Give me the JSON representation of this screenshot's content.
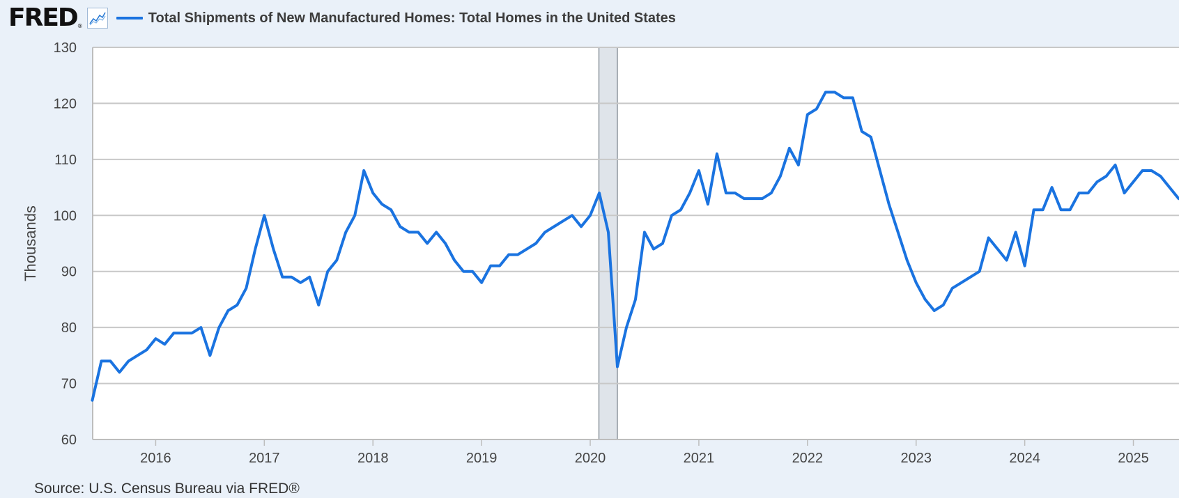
{
  "header": {
    "logo_text": "FRED",
    "logo_reg": "®",
    "legend_label": "Total Shipments of New Manufactured Homes: Total Homes in the United States",
    "logo_icon": "line-chart-icon"
  },
  "source": "Source: U.S. Census Bureau via FRED®",
  "colors": {
    "series": "#1a73e0",
    "recession": "#dfe4ea",
    "grid": "#c8c8c8",
    "background": "#eaf1f9"
  },
  "chart_data": {
    "type": "line",
    "title": "Total Shipments of New Manufactured Homes: Total Homes in the United States",
    "xlabel": "",
    "ylabel": "Thousands",
    "ylim": [
      60,
      130
    ],
    "yticks": [
      60,
      70,
      80,
      90,
      100,
      110,
      120,
      130
    ],
    "xlim": [
      2015.42,
      2025.42
    ],
    "xticks": [
      2016,
      2017,
      2018,
      2019,
      2020,
      2021,
      2022,
      2023,
      2024,
      2025
    ],
    "grid": true,
    "recession": [
      2020.08,
      2020.25
    ],
    "series": [
      {
        "name": "Total Shipments of New Manufactured Homes: Total Homes in the United States",
        "start": [
          2015,
          6
        ],
        "frequency": "monthly",
        "values": [
          67,
          74,
          74,
          72,
          74,
          75,
          76,
          78,
          77,
          79,
          79,
          79,
          80,
          75,
          80,
          83,
          84,
          87,
          94,
          100,
          94,
          89,
          89,
          88,
          89,
          84,
          90,
          92,
          97,
          100,
          108,
          104,
          102,
          101,
          98,
          97,
          97,
          95,
          97,
          95,
          92,
          90,
          90,
          88,
          91,
          91,
          93,
          93,
          94,
          95,
          97,
          98,
          99,
          100,
          98,
          100,
          104,
          97,
          73,
          80,
          85,
          97,
          94,
          95,
          100,
          101,
          104,
          108,
          102,
          111,
          104,
          104,
          103,
          103,
          103,
          104,
          107,
          112,
          109,
          118,
          119,
          122,
          122,
          121,
          121,
          115,
          114,
          108,
          102,
          97,
          92,
          88,
          85,
          83,
          84,
          87,
          88,
          89,
          90,
          96,
          94,
          92,
          97,
          91,
          101,
          101,
          105,
          101,
          101,
          104,
          104,
          106,
          107,
          109,
          104,
          106,
          108,
          108,
          107,
          105,
          103
        ]
      }
    ]
  }
}
